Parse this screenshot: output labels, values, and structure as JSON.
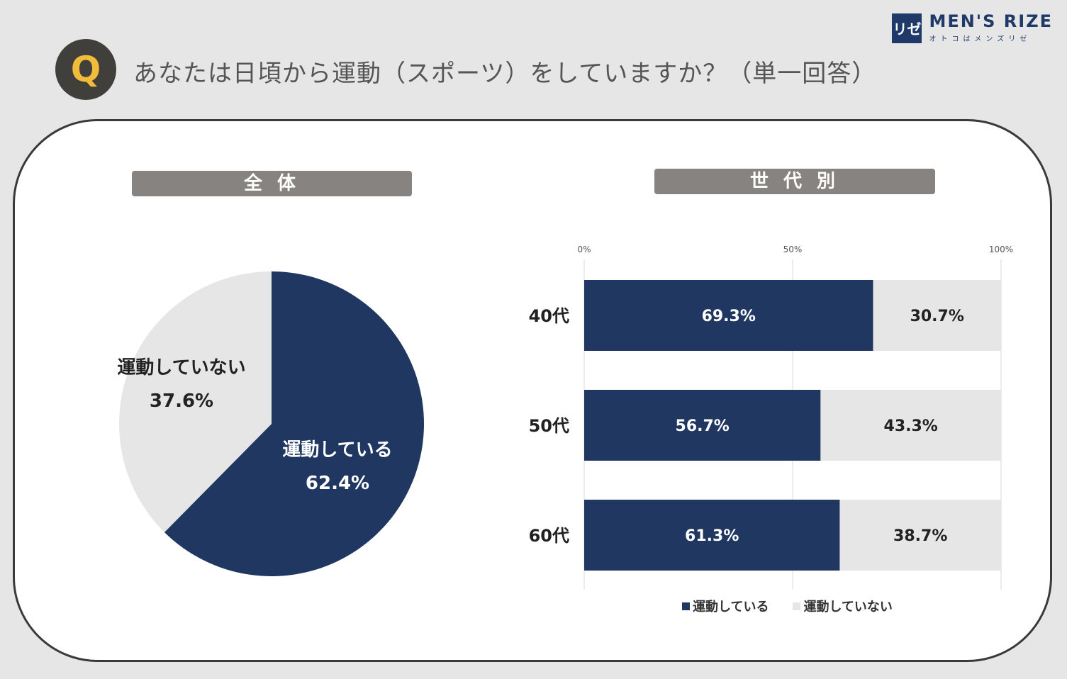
{
  "header": {
    "q_letter": "Q",
    "question": "あなたは日頃から運動（スポーツ）をしていますか？（単一回答）"
  },
  "logo": {
    "mark": "リゼ",
    "name": "MEN'S RIZE",
    "sub": "オトコはメンズリゼ"
  },
  "colors": {
    "active": "#1f3761",
    "inactive": "#e6e6e6"
  },
  "chart_data": [
    {
      "type": "pie",
      "title": "全 体",
      "slices": [
        {
          "label": "運動している",
          "value": 62.4,
          "value_label": "62.4%",
          "color": "#1f3761"
        },
        {
          "label": "運動していない",
          "value": 37.6,
          "value_label": "37.6%",
          "color": "#e6e6e6"
        }
      ]
    },
    {
      "type": "bar",
      "orientation": "horizontal",
      "stacked": true,
      "title": "世 代 別",
      "categories": [
        "40代",
        "50代",
        "60代"
      ],
      "xlim": [
        0,
        100
      ],
      "xticks": [
        "0%",
        "50%",
        "100%"
      ],
      "grid": true,
      "legend": "bottom",
      "series": [
        {
          "name": "運動している",
          "color": "#1f3761",
          "values": [
            69.3,
            56.7,
            61.3
          ],
          "labels": [
            "69.3%",
            "56.7%",
            "61.3%"
          ]
        },
        {
          "name": "運動していない",
          "color": "#e6e6e6",
          "values": [
            30.7,
            43.3,
            38.7
          ],
          "labels": [
            "30.7%",
            "43.3%",
            "38.7%"
          ]
        }
      ]
    }
  ]
}
